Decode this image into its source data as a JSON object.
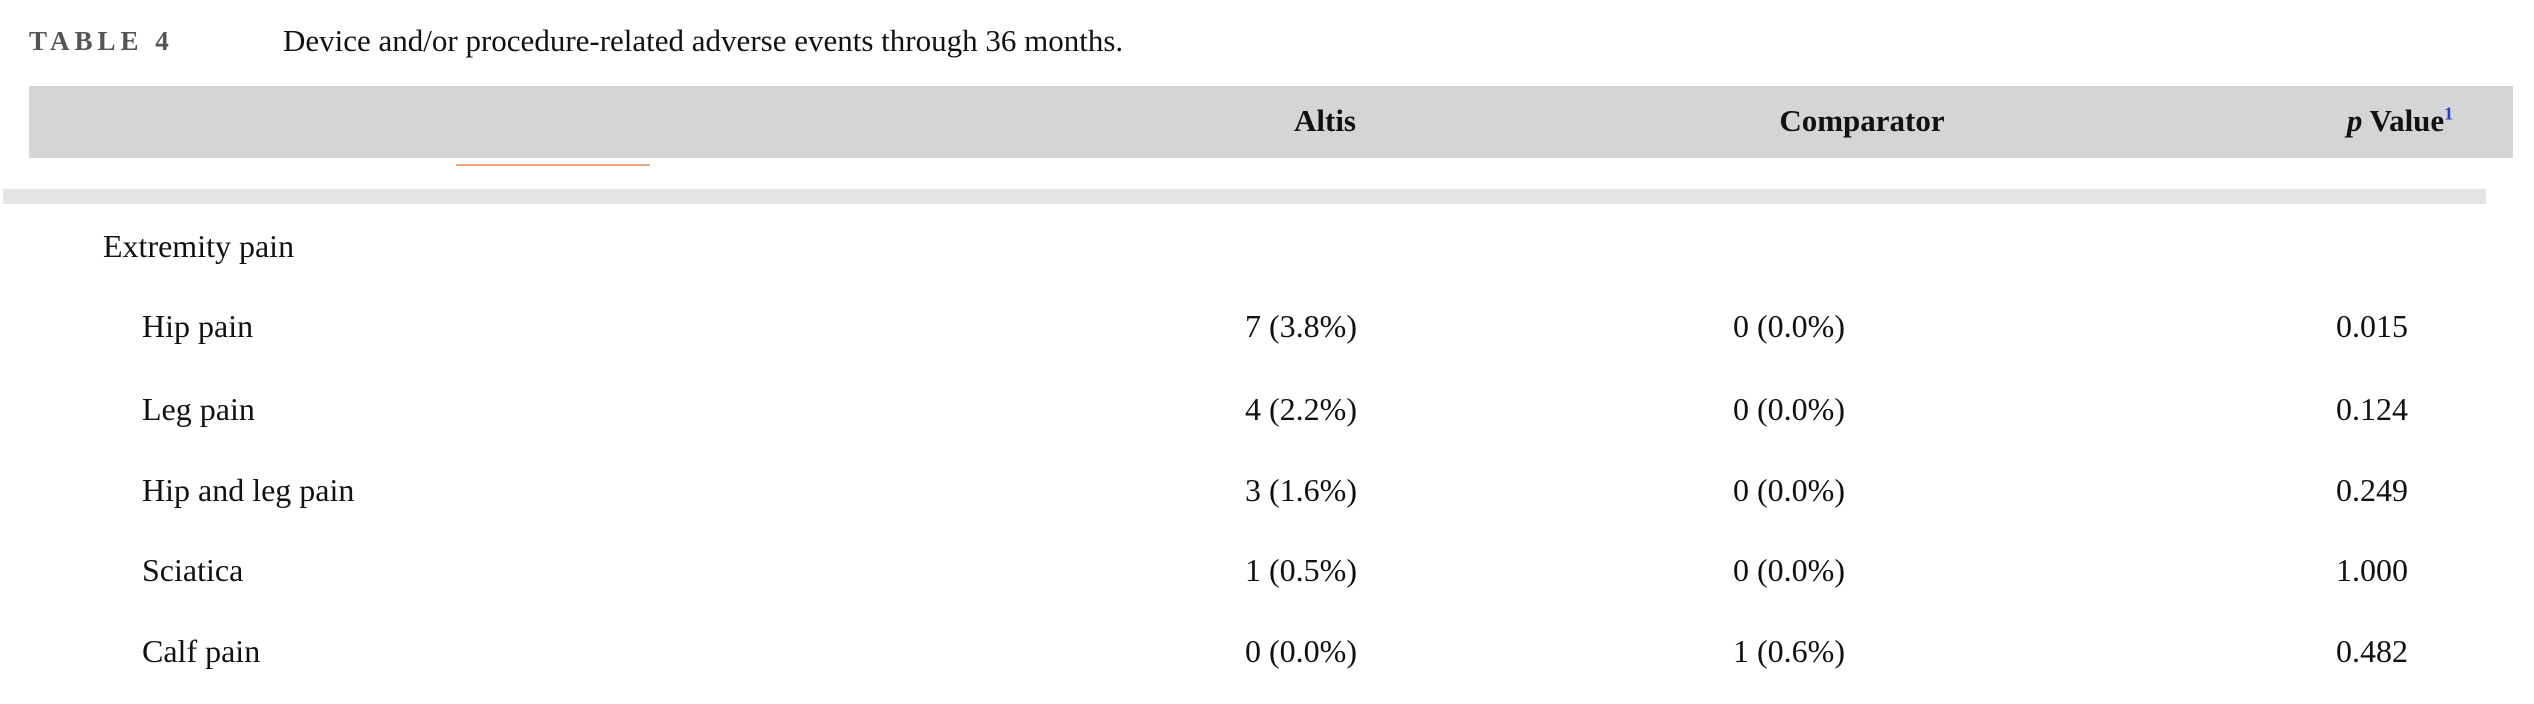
{
  "caption": {
    "label": "TABLE 4",
    "title": "Device and/or procedure-related adverse events through 36 months."
  },
  "table": {
    "header": {
      "altis": "Altis",
      "comparator": "Comparator",
      "p_value": {
        "symbol": "p",
        "text": "Value",
        "footnote": "1"
      }
    },
    "group": "Extremity pain",
    "rows": [
      [
        "Hip pain",
        "7 (3.8%)",
        "0 (0.0%)",
        "0.015"
      ],
      [
        "Leg pain",
        "4 (2.2%)",
        "0 (0.0%)",
        "0.124"
      ],
      [
        "Hip and leg pain",
        "3 (1.6%)",
        "0 (0.0%)",
        "0.249"
      ],
      [
        "Sciatica",
        "1 (0.5%)",
        "0 (0.0%)",
        "1.000"
      ],
      [
        "Calf pain",
        "0 (0.0%)",
        "1 (0.6%)",
        "0.482"
      ]
    ]
  }
}
